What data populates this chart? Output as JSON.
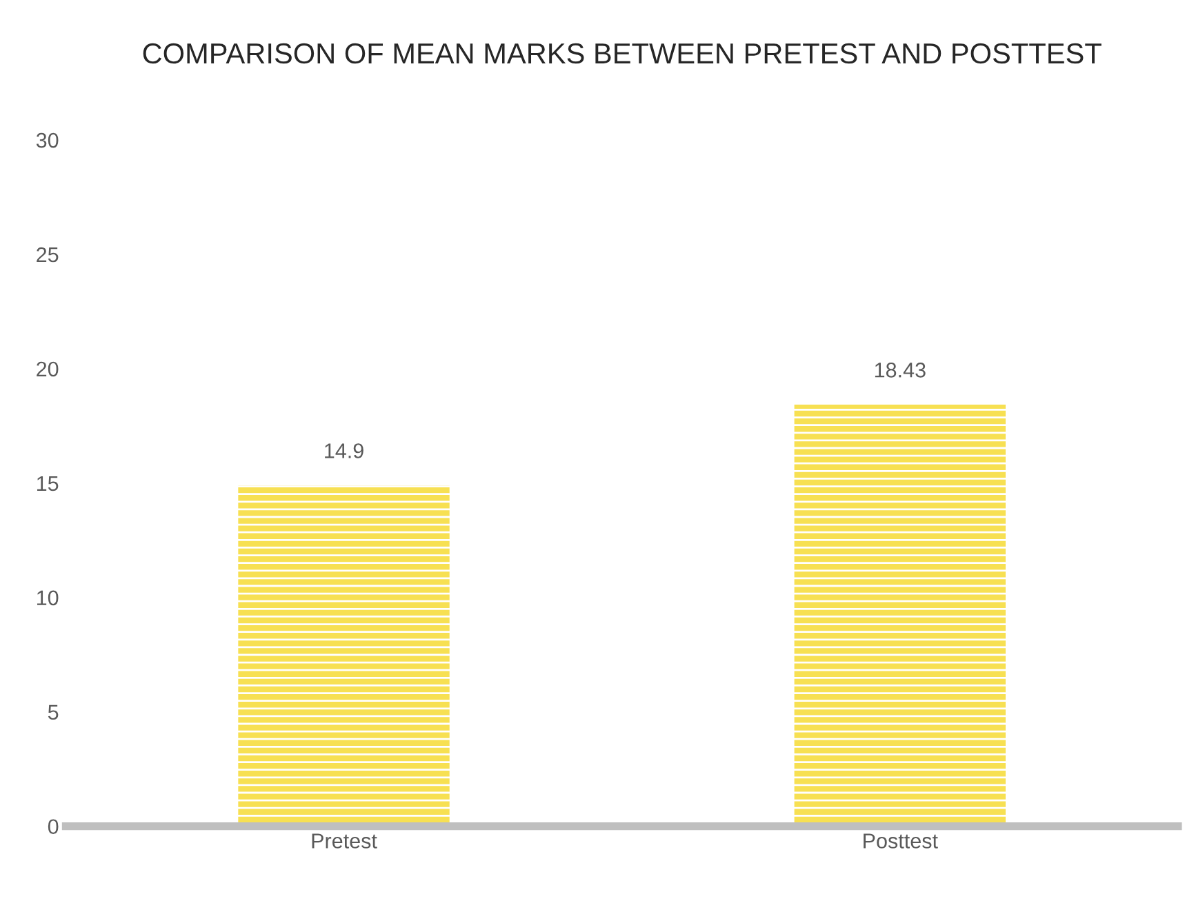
{
  "chart_data": {
    "type": "bar",
    "title": "COMPARISON OF MEAN MARKS BETWEEN PRETEST AND POSTTEST",
    "categories": [
      "Pretest",
      "Posttest"
    ],
    "values": [
      14.9,
      18.43
    ],
    "color": "#f7e052",
    "ylim": [
      0,
      30
    ],
    "yticks": [
      0,
      5,
      10,
      15,
      20,
      25,
      30
    ],
    "data_labels": true,
    "grid": false
  }
}
